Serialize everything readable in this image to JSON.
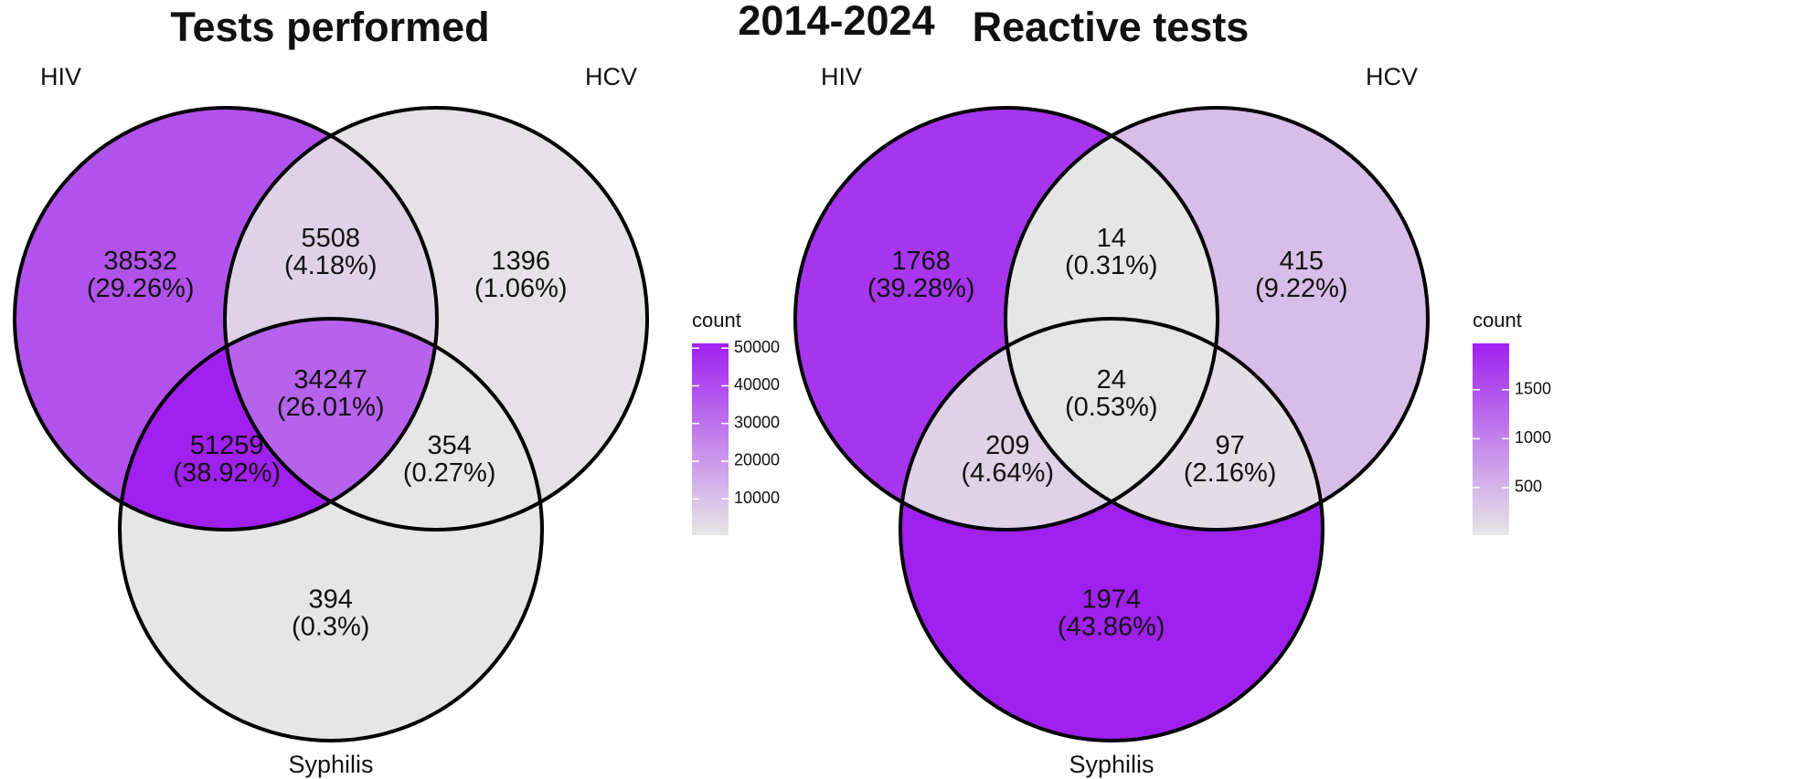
{
  "title": "2014-2024",
  "chart_data": [
    {
      "type": "venn",
      "title": "Tests performed",
      "sets": [
        "HIV",
        "HCV",
        "Syphilis"
      ],
      "regions": [
        {
          "sets": [
            0
          ],
          "count": 38532,
          "percent": 29.26,
          "percent_label": "(29.26%)"
        },
        {
          "sets": [
            0,
            1
          ],
          "count": 5508,
          "percent": 4.18,
          "percent_label": "(4.18%)"
        },
        {
          "sets": [
            1
          ],
          "count": 1396,
          "percent": 1.06,
          "percent_label": "(1.06%)"
        },
        {
          "sets": [
            0,
            2
          ],
          "count": 51259,
          "percent": 38.92,
          "percent_label": "(38.92%)"
        },
        {
          "sets": [
            0,
            1,
            2
          ],
          "count": 34247,
          "percent": 26.01,
          "percent_label": "(26.01%)"
        },
        {
          "sets": [
            1,
            2
          ],
          "count": 354,
          "percent": 0.27,
          "percent_label": "(0.27%)"
        },
        {
          "sets": [
            2
          ],
          "count": 394,
          "percent": 0.3,
          "percent_label": "(0.3%)"
        }
      ],
      "legend": {
        "title": "count",
        "clim": [
          354,
          51259
        ],
        "ticks": [
          10000,
          20000,
          30000,
          40000,
          50000
        ],
        "colors": [
          "#e6e6e6",
          "#a020f0"
        ]
      }
    },
    {
      "type": "venn",
      "title": "Reactive tests",
      "sets": [
        "HIV",
        "HCV",
        "Syphilis"
      ],
      "regions": [
        {
          "sets": [
            0
          ],
          "count": 1768,
          "percent": 39.28,
          "percent_label": "(39.28%)"
        },
        {
          "sets": [
            0,
            1
          ],
          "count": 14,
          "percent": 0.31,
          "percent_label": "(0.31%)"
        },
        {
          "sets": [
            1
          ],
          "count": 415,
          "percent": 9.22,
          "percent_label": "(9.22%)"
        },
        {
          "sets": [
            0,
            2
          ],
          "count": 209,
          "percent": 4.64,
          "percent_label": "(4.64%)"
        },
        {
          "sets": [
            0,
            1,
            2
          ],
          "count": 24,
          "percent": 0.53,
          "percent_label": "(0.53%)"
        },
        {
          "sets": [
            1,
            2
          ],
          "count": 97,
          "percent": 2.16,
          "percent_label": "(2.16%)"
        },
        {
          "sets": [
            2
          ],
          "count": 1974,
          "percent": 43.86,
          "percent_label": "(43.86%)"
        }
      ],
      "legend": {
        "title": "count",
        "clim": [
          14,
          1974
        ],
        "ticks": [
          500,
          1000,
          1500
        ],
        "colors": [
          "#e6e6e6",
          "#a020f0"
        ]
      }
    }
  ]
}
